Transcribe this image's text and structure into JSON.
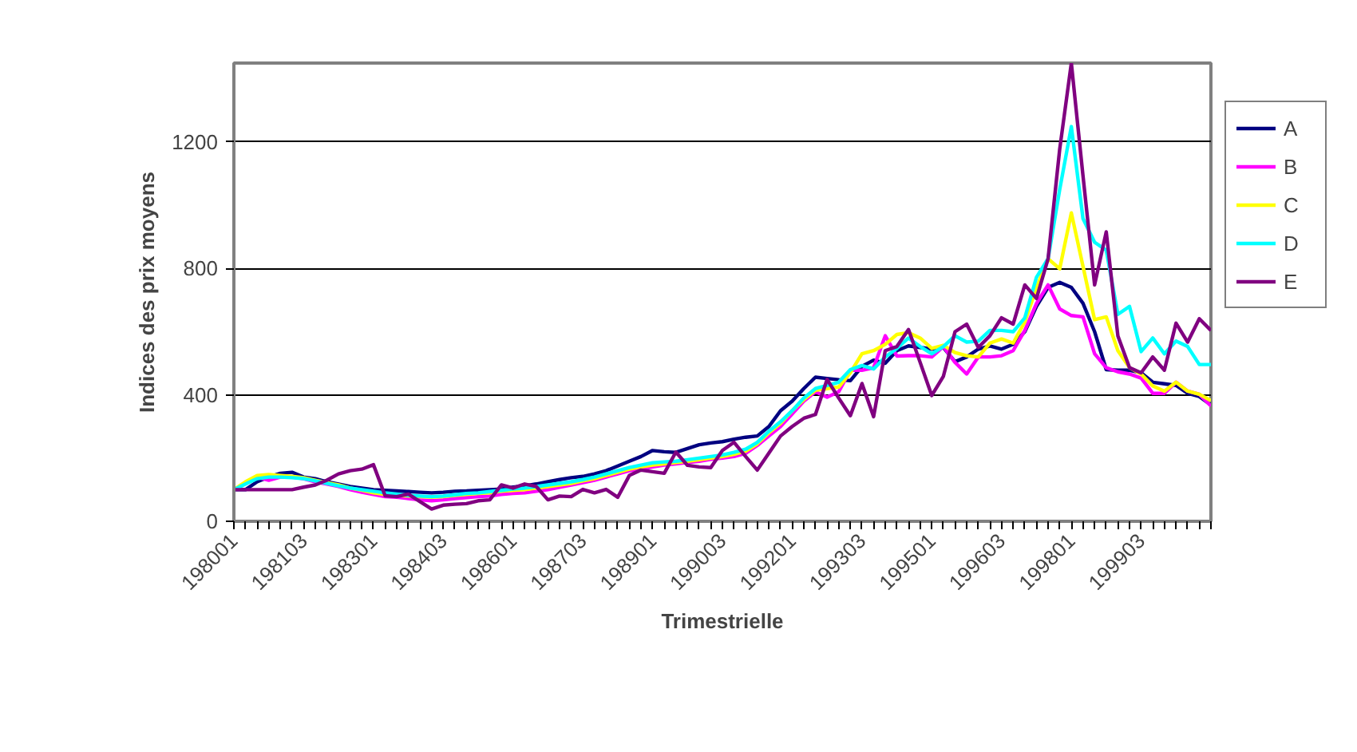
{
  "chart_data": {
    "type": "line",
    "xlabel": "Trimestrielle",
    "ylabel": "Indices des prix moyens",
    "categories": [
      "198001",
      null,
      null,
      null,
      null,
      null,
      "198103",
      null,
      null,
      null,
      null,
      null,
      "198301",
      null,
      null,
      null,
      null,
      null,
      "198403",
      null,
      null,
      null,
      null,
      null,
      "198601",
      null,
      null,
      null,
      null,
      null,
      "198703",
      null,
      null,
      null,
      null,
      null,
      "198901",
      null,
      null,
      null,
      null,
      null,
      "199003",
      null,
      null,
      null,
      null,
      null,
      "199201",
      null,
      null,
      null,
      null,
      null,
      "199303",
      null,
      null,
      null,
      null,
      null,
      "199501",
      null,
      null,
      null,
      null,
      null,
      "199603",
      null,
      null,
      null,
      null,
      null,
      "199801",
      null,
      null,
      null,
      null,
      null,
      "199903",
      null,
      null,
      null,
      null,
      null,
      null
    ],
    "series": [
      {
        "name": "A",
        "color": "#000080",
        "values": [
          100,
          100,
          125,
          140,
          152,
          155,
          140,
          135,
          125,
          118,
          110,
          105,
          100,
          98,
          96,
          94,
          92,
          90,
          92,
          95,
          96,
          98,
          100,
          102,
          108,
          112,
          118,
          125,
          132,
          138,
          142,
          150,
          160,
          175,
          190,
          205,
          224,
          220,
          218,
          230,
          242,
          248,
          252,
          260,
          266,
          270,
          300,
          350,
          380,
          420,
          456,
          452,
          448,
          445,
          490,
          510,
          500,
          540,
          555,
          550,
          545,
          550,
          505,
          520,
          545,
          555,
          545,
          560,
          600,
          680,
          740,
          756,
          740,
          690,
          600,
          480,
          478,
          478,
          470,
          440,
          435,
          430,
          405,
          395,
          368
        ]
      },
      {
        "name": "B",
        "color": "#ff00ff",
        "values": [
          100,
          120,
          140,
          130,
          140,
          140,
          135,
          125,
          118,
          110,
          100,
          92,
          85,
          78,
          76,
          72,
          68,
          65,
          68,
          72,
          75,
          78,
          80,
          85,
          88,
          90,
          95,
          100,
          108,
          115,
          122,
          130,
          140,
          150,
          160,
          165,
          172,
          178,
          182,
          186,
          190,
          196,
          200,
          205,
          215,
          240,
          270,
          300,
          340,
          380,
          410,
          393,
          410,
          478,
          478,
          486,
          587,
          523,
          524,
          524,
          520,
          553,
          503,
          466,
          520,
          520,
          524,
          540,
          604,
          689,
          748,
          672,
          651,
          647,
          530,
          486,
          473,
          466,
          453,
          405,
          405,
          440,
          412,
          402,
          365
        ]
      },
      {
        "name": "C",
        "color": "#ffff00",
        "values": [
          100,
          125,
          145,
          148,
          145,
          142,
          138,
          130,
          122,
          115,
          105,
          98,
          90,
          85,
          82,
          80,
          78,
          76,
          78,
          82,
          85,
          88,
          90,
          95,
          98,
          100,
          105,
          110,
          115,
          120,
          128,
          135,
          145,
          155,
          165,
          172,
          178,
          182,
          186,
          190,
          195,
          200,
          205,
          212,
          222,
          245,
          280,
          310,
          350,
          385,
          415,
          420,
          425,
          470,
          530,
          540,
          560,
          591,
          597,
          580,
          547,
          557,
          534,
          524,
          520,
          564,
          577,
          564,
          631,
          739,
          831,
          799,
          976,
          807,
          638,
          647,
          540,
          486,
          466,
          428,
          412,
          440,
          412,
          402,
          382
        ]
      },
      {
        "name": "D",
        "color": "#00ffff",
        "values": [
          100,
          118,
          135,
          140,
          140,
          138,
          135,
          128,
          120,
          112,
          105,
          100,
          95,
          90,
          86,
          82,
          80,
          78,
          80,
          84,
          88,
          90,
          94,
          98,
          102,
          105,
          110,
          115,
          120,
          125,
          132,
          140,
          150,
          160,
          170,
          178,
          185,
          188,
          190,
          195,
          200,
          205,
          210,
          218,
          228,
          250,
          285,
          315,
          350,
          390,
          420,
          430,
          440,
          480,
          493,
          482,
          520,
          547,
          580,
          553,
          530,
          553,
          587,
          567,
          570,
          604,
          604,
          600,
          644,
          772,
          831,
          1050,
          1249,
          958,
          883,
          858,
          655,
          680,
          537,
          580,
          530,
          570,
          553,
          496,
          496
        ]
      },
      {
        "name": "E",
        "color": "#800080",
        "values": [
          100,
          100,
          100,
          100,
          100,
          100,
          108,
          115,
          130,
          150,
          160,
          165,
          179,
          81,
          78,
          86,
          62,
          39,
          51,
          54,
          56,
          65,
          68,
          115,
          105,
          118,
          110,
          68,
          80,
          78,
          101,
          90,
          101,
          76,
          145,
          162,
          157,
          152,
          219,
          177,
          172,
          170,
          224,
          250,
          205,
          162,
          216,
          270,
          300,
          326,
          338,
          449,
          390,
          334,
          436,
          331,
          540,
          553,
          607,
          503,
          398,
          459,
          600,
          624,
          550,
          587,
          644,
          624,
          748,
          705,
          831,
          1178,
          1450,
          1094,
          748,
          916,
          587,
          486,
          470,
          520,
          478,
          627,
          567,
          641,
          604
        ]
      }
    ],
    "ylim": [
      0,
      1450
    ],
    "yticks": [
      0,
      400,
      800,
      1200
    ],
    "grid": "y",
    "legend": "right",
    "marker": "none",
    "line_style": "solid"
  }
}
